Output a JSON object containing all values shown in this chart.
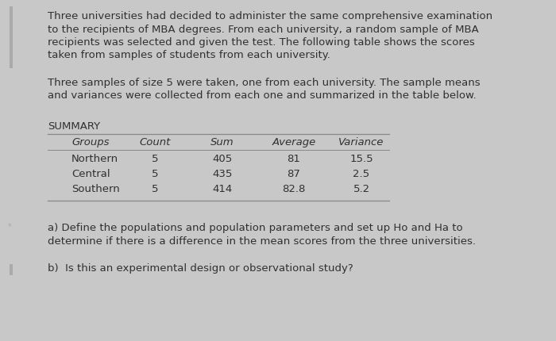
{
  "bg_color": "#c8c8c8",
  "card_color": "#d6d6d6",
  "text_color": "#303030",
  "para1_lines": [
    "Three universities had decided to administer the same comprehensive examination",
    "to the recipients of MBA degrees. From each university, a random sample of MBA",
    "recipients was selected and given the test. The following table shows the scores",
    "taken from samples of students from each university."
  ],
  "para2_lines": [
    "Three samples of size 5 were taken, one from each university. The sample means",
    "and variances were collected from each one and summarized in the table below."
  ],
  "summary_label": "SUMMARY",
  "table_headers": [
    "Groups",
    "Count",
    "Sum",
    "Average",
    "Variance"
  ],
  "table_rows": [
    [
      "Northern",
      "5",
      "405",
      "81",
      "15.5"
    ],
    [
      "Central",
      "5",
      "435",
      "87",
      "2.5"
    ],
    [
      "Southern",
      "5",
      "414",
      "82.8",
      "5.2"
    ]
  ],
  "para3_lines": [
    "a) Define the populations and population parameters and set up Ho and Ha to",
    "determine if there is a difference in the mean scores from the three universities."
  ],
  "para4": "b)  Is this an experimental design or observational study?",
  "accent_bar_color": "#aaaaaa",
  "line_color": "#888888",
  "font_size": 9.5,
  "header_font_size": 9.5,
  "summary_font_size": 9.5
}
